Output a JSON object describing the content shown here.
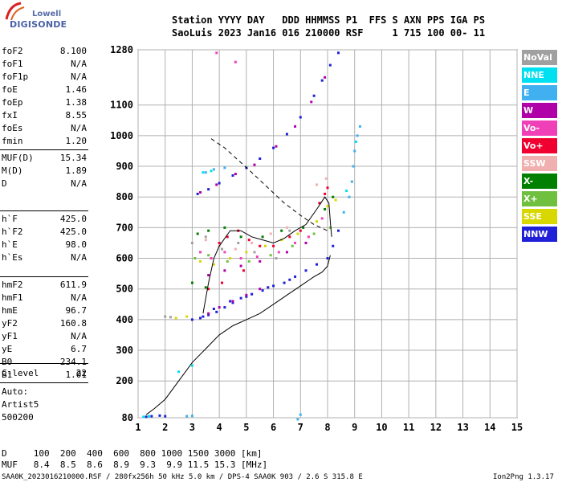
{
  "logo": {
    "brand_top": "Lowell",
    "brand_bottom": "DIGISONDE"
  },
  "header": {
    "line1": "Station YYYY DAY   DDD HHMMSS P1  FFS S AXN PPS IGA PS",
    "line2": "SaoLuis 2023 Jan16 016 210000 RSF     1 715 100 00- 11"
  },
  "params_group1": [
    {
      "name": "foF2",
      "value": "8.100"
    },
    {
      "name": "foF1",
      "value": "N/A"
    },
    {
      "name": "foF1p",
      "value": "N/A"
    },
    {
      "name": "foE",
      "value": "1.46"
    },
    {
      "name": "foEp",
      "value": "1.38"
    },
    {
      "name": "fxI",
      "value": "8.55"
    },
    {
      "name": "foEs",
      "value": "N/A"
    },
    {
      "name": "fmin",
      "value": "1.20"
    }
  ],
  "params_group2": [
    {
      "name": "MUF(D)",
      "value": "15.34"
    },
    {
      "name": "M(D)",
      "value": "1.89"
    },
    {
      "name": "D",
      "value": "N/A"
    }
  ],
  "params_group3": [
    {
      "name": "h`F",
      "value": "425.0"
    },
    {
      "name": "h`F2",
      "value": "425.0"
    },
    {
      "name": "h`E",
      "value": "98.0"
    },
    {
      "name": "h`Es",
      "value": "N/A"
    }
  ],
  "params_group4": [
    {
      "name": "hmF2",
      "value": "611.9"
    },
    {
      "name": "hmF1",
      "value": "N/A"
    },
    {
      "name": "hmE",
      "value": "96.7"
    },
    {
      "name": "yF2",
      "value": "160.8"
    },
    {
      "name": "yF1",
      "value": "N/A"
    },
    {
      "name": "yE",
      "value": "6.7"
    },
    {
      "name": "B0",
      "value": "234.1"
    },
    {
      "name": "B1",
      "value": "1.01"
    }
  ],
  "params_group5": [
    {
      "name": "C-level",
      "value": "22"
    }
  ],
  "autoscaling": {
    "line1": "Auto:",
    "line2": "Artist5",
    "line3": "500200"
  },
  "legend": [
    {
      "label": "NoVal",
      "color": "#a0a0a0"
    },
    {
      "label": "NNE",
      "color": "#00e0f0"
    },
    {
      "label": "E",
      "color": "#40b0f0"
    },
    {
      "label": "W",
      "color": "#b000a8"
    },
    {
      "label": "Vo-",
      "color": "#f040b8"
    },
    {
      "label": "Vo+",
      "color": "#f00030"
    },
    {
      "label": "SSW",
      "color": "#f0b0b0"
    },
    {
      "label": "X-",
      "color": "#008000"
    },
    {
      "label": "X+",
      "color": "#70c040"
    },
    {
      "label": "SSE",
      "color": "#d8d800"
    },
    {
      "label": "NNW",
      "color": "#2020d8"
    }
  ],
  "footer": {
    "d_row": "D     100  200  400  600  800 1000 1500 3000 [km]",
    "muf_row": "MUF   8.4  8.5  8.6  8.9  9.3  9.9 11.5 15.3 [MHz]",
    "file_info": "SAA0K_2023016210000.RSF / 280fx256h 50 kHz 5.0 km / DPS-4 SAA0K 903 / 2.6 S 315.8 E",
    "version": "Ion2Png 1.3.17"
  },
  "chart_data": {
    "type": "scatter",
    "title": "",
    "xlabel": "",
    "ylabel": "",
    "xlim": [
      1,
      15
    ],
    "ylim": [
      80,
      1280
    ],
    "x_ticks": [
      1,
      2,
      3,
      4,
      5,
      6,
      7,
      8,
      9,
      10,
      11,
      12,
      13,
      14,
      15
    ],
    "y_ticks": [
      80,
      200,
      300,
      400,
      500,
      600,
      700,
      800,
      900,
      1000,
      1100,
      1280
    ],
    "grid": true,
    "series": [
      {
        "name": "NNW",
        "color": "#2020d8",
        "points": [
          [
            1.3,
            83
          ],
          [
            1.5,
            85
          ],
          [
            1.8,
            87
          ],
          [
            2.0,
            85
          ],
          [
            3.0,
            400
          ],
          [
            3.3,
            405
          ],
          [
            3.6,
            415
          ],
          [
            3.9,
            425
          ],
          [
            4.2,
            440
          ],
          [
            4.5,
            455
          ],
          [
            4.8,
            470
          ],
          [
            5.2,
            483
          ],
          [
            5.6,
            495
          ],
          [
            6.0,
            510
          ],
          [
            6.4,
            520
          ],
          [
            6.8,
            540
          ],
          [
            7.2,
            560
          ],
          [
            7.6,
            580
          ],
          [
            8.0,
            600
          ],
          [
            8.2,
            640
          ],
          [
            8.4,
            690
          ],
          [
            3.2,
            810
          ],
          [
            3.6,
            825
          ],
          [
            4.0,
            845
          ],
          [
            4.5,
            870
          ],
          [
            5.0,
            895
          ],
          [
            5.5,
            925
          ],
          [
            6.0,
            960
          ],
          [
            6.5,
            1005
          ],
          [
            7.0,
            1060
          ],
          [
            7.5,
            1130
          ],
          [
            7.8,
            1180
          ],
          [
            8.1,
            1230
          ],
          [
            8.4,
            1270
          ],
          [
            3.4,
            410
          ],
          [
            3.8,
            435
          ],
          [
            4.4,
            460
          ],
          [
            5.0,
            475
          ],
          [
            5.8,
            505
          ],
          [
            6.6,
            530
          ]
        ]
      },
      {
        "name": "W",
        "color": "#b000a8",
        "points": [
          [
            3.6,
            420
          ],
          [
            4.0,
            440
          ],
          [
            4.5,
            460
          ],
          [
            5.0,
            480
          ],
          [
            5.5,
            500
          ],
          [
            3.3,
            815
          ],
          [
            3.9,
            840
          ],
          [
            4.6,
            875
          ],
          [
            5.3,
            905
          ],
          [
            6.1,
            965
          ],
          [
            6.8,
            1030
          ],
          [
            7.4,
            1110
          ],
          [
            7.9,
            1190
          ],
          [
            3.6,
            545
          ],
          [
            4.2,
            560
          ],
          [
            4.8,
            575
          ],
          [
            5.5,
            590
          ],
          [
            6.5,
            620
          ],
          [
            7.2,
            650
          ]
        ]
      },
      {
        "name": "E",
        "color": "#40b0f0",
        "points": [
          [
            3.5,
            880
          ],
          [
            3.8,
            890
          ],
          [
            4.2,
            895
          ],
          [
            8.6,
            750
          ],
          [
            8.8,
            800
          ],
          [
            8.9,
            850
          ],
          [
            8.95,
            900
          ],
          [
            9.0,
            950
          ],
          [
            9.1,
            1000
          ],
          [
            9.2,
            1030
          ],
          [
            6.9,
            75
          ],
          [
            7.0,
            90
          ],
          [
            2.8,
            85
          ],
          [
            3.0,
            86
          ]
        ]
      },
      {
        "name": "NNE",
        "color": "#00e0f0",
        "points": [
          [
            1.2,
            83
          ],
          [
            1.4,
            85
          ],
          [
            2.5,
            230
          ],
          [
            3.0,
            250
          ],
          [
            3.4,
            880
          ],
          [
            3.7,
            885
          ],
          [
            8.7,
            820
          ],
          [
            9.05,
            980
          ]
        ]
      },
      {
        "name": "Vo+",
        "color": "#f00030",
        "points": [
          [
            4.0,
            650
          ],
          [
            4.3,
            670
          ],
          [
            4.7,
            690
          ],
          [
            5.1,
            660
          ],
          [
            5.5,
            640
          ],
          [
            6.0,
            640
          ],
          [
            6.6,
            670
          ],
          [
            7.0,
            690
          ],
          [
            7.7,
            780
          ],
          [
            7.9,
            810
          ],
          [
            8.0,
            830
          ],
          [
            3.6,
            500
          ],
          [
            4.1,
            520
          ],
          [
            4.9,
            560
          ]
        ]
      },
      {
        "name": "Vo-",
        "color": "#f040b8",
        "points": [
          [
            3.3,
            620
          ],
          [
            3.7,
            600
          ],
          [
            4.2,
            620
          ],
          [
            4.8,
            600
          ],
          [
            5.4,
            605
          ],
          [
            6.2,
            620
          ],
          [
            6.8,
            650
          ],
          [
            7.3,
            670
          ],
          [
            7.8,
            730
          ],
          [
            3.9,
            1270
          ],
          [
            4.6,
            1240
          ]
        ]
      },
      {
        "name": "SSW",
        "color": "#f0b0b0",
        "points": [
          [
            3.5,
            660
          ],
          [
            4.0,
            640
          ],
          [
            4.6,
            630
          ],
          [
            5.2,
            650
          ],
          [
            5.9,
            680
          ],
          [
            6.5,
            700
          ],
          [
            7.6,
            840
          ],
          [
            7.95,
            860
          ]
        ]
      },
      {
        "name": "X-",
        "color": "#008000",
        "points": [
          [
            3.2,
            680
          ],
          [
            3.6,
            690
          ],
          [
            4.2,
            700
          ],
          [
            4.8,
            670
          ],
          [
            5.6,
            670
          ],
          [
            6.3,
            690
          ],
          [
            7.1,
            700
          ],
          [
            7.9,
            760
          ],
          [
            8.2,
            800
          ],
          [
            3.0,
            520
          ],
          [
            3.5,
            505
          ]
        ]
      },
      {
        "name": "X+",
        "color": "#70c040",
        "points": [
          [
            3.1,
            600
          ],
          [
            3.6,
            610
          ],
          [
            4.3,
            590
          ],
          [
            5.1,
            590
          ],
          [
            5.9,
            610
          ],
          [
            6.7,
            640
          ],
          [
            7.5,
            680
          ],
          [
            8.1,
            700
          ]
        ]
      },
      {
        "name": "SSE",
        "color": "#d8d800",
        "points": [
          [
            2.4,
            405
          ],
          [
            2.8,
            410
          ],
          [
            3.3,
            590
          ],
          [
            3.8,
            580
          ],
          [
            4.4,
            600
          ],
          [
            5.0,
            620
          ],
          [
            5.7,
            640
          ],
          [
            6.3,
            660
          ],
          [
            6.9,
            680
          ],
          [
            7.6,
            720
          ],
          [
            8.0,
            770
          ],
          [
            8.3,
            790
          ]
        ]
      },
      {
        "name": "NoVal",
        "color": "#a0a0a0",
        "points": [
          [
            3.0,
            650
          ],
          [
            3.5,
            670
          ],
          [
            4.1,
            630
          ],
          [
            4.7,
            650
          ],
          [
            5.3,
            620
          ],
          [
            6.1,
            600
          ],
          [
            6.6,
            690
          ],
          [
            2.2,
            408
          ],
          [
            2.0,
            410
          ]
        ]
      }
    ],
    "profile_line": [
      [
        1.3,
        90
      ],
      [
        1.6,
        110
      ],
      [
        2.0,
        140
      ],
      [
        2.5,
        200
      ],
      [
        3.0,
        260
      ],
      [
        3.5,
        305
      ],
      [
        4.0,
        350
      ],
      [
        4.5,
        380
      ],
      [
        5.0,
        400
      ],
      [
        5.5,
        420
      ],
      [
        6.0,
        450
      ],
      [
        6.5,
        480
      ],
      [
        7.0,
        510
      ],
      [
        7.5,
        540
      ],
      [
        7.8,
        555
      ],
      [
        8.0,
        575
      ],
      [
        8.1,
        610
      ]
    ],
    "trace_line": [
      [
        3.4,
        420
      ],
      [
        3.6,
        520
      ],
      [
        3.8,
        600
      ],
      [
        4.0,
        640
      ],
      [
        4.4,
        690
      ],
      [
        4.8,
        690
      ],
      [
        5.2,
        670
      ],
      [
        5.6,
        660
      ],
      [
        6.0,
        650
      ],
      [
        6.4,
        665
      ],
      [
        6.8,
        690
      ],
      [
        7.2,
        710
      ],
      [
        7.6,
        760
      ],
      [
        7.9,
        800
      ],
      [
        8.05,
        780
      ],
      [
        8.1,
        720
      ],
      [
        8.15,
        670
      ]
    ],
    "dashed_line": [
      [
        3.7,
        990
      ],
      [
        4.2,
        960
      ],
      [
        4.7,
        920
      ],
      [
        5.2,
        880
      ],
      [
        5.8,
        830
      ],
      [
        6.4,
        780
      ],
      [
        7.0,
        740
      ],
      [
        7.5,
        710
      ],
      [
        8.0,
        690
      ]
    ]
  }
}
